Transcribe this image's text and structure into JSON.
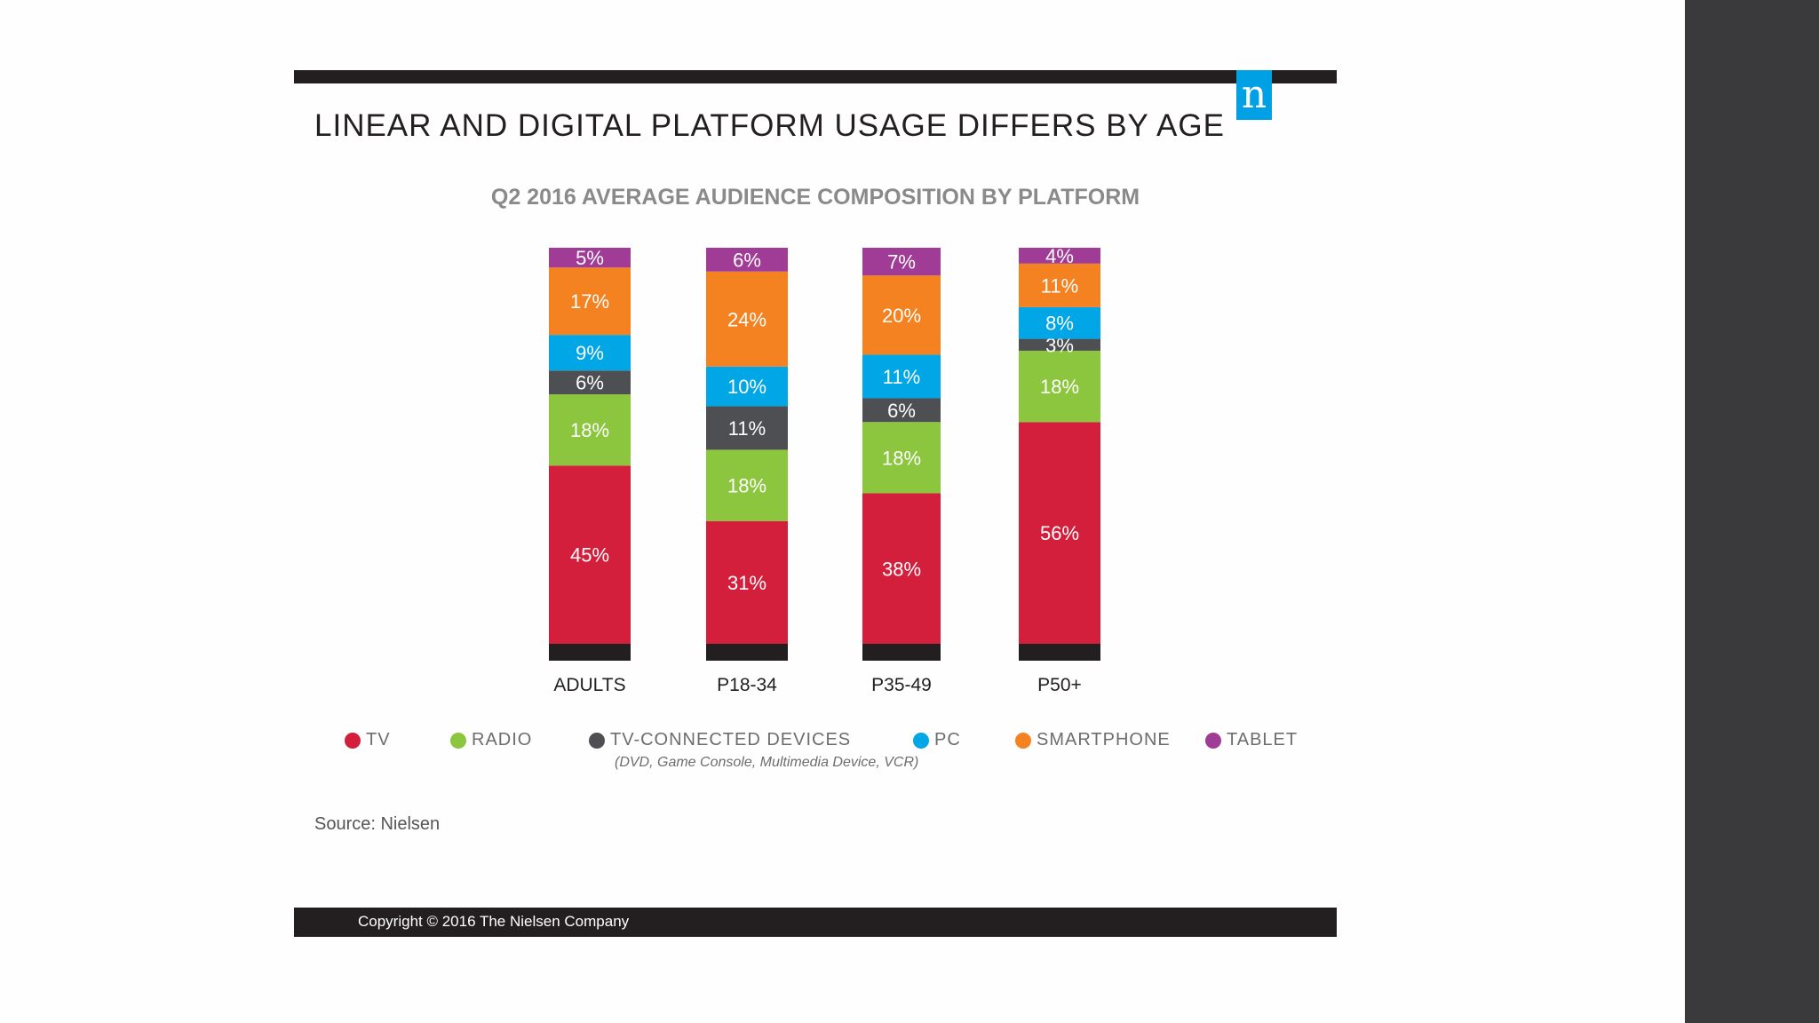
{
  "slide": {
    "title": "LINEAR AND DIGITAL PLATFORM USAGE DIFFERS BY AGE",
    "logo_letter": "n",
    "source": "Source: Nielsen",
    "copyright": "Copyright © 2016 The Nielsen Company"
  },
  "legend_note": "(DVD, Game Console, Multimedia Device, VCR)",
  "chart_data": {
    "type": "bar",
    "stacked": true,
    "title": "Q2 2016 AVERAGE AUDIENCE COMPOSITION BY PLATFORM",
    "xlabel": "",
    "ylabel": "",
    "ylim": [
      0,
      100
    ],
    "categories": [
      "ADULTS",
      "P18-34",
      "P35-49",
      "P50+"
    ],
    "series": [
      {
        "name": "TV",
        "color": "#d41f3c",
        "values": [
          45,
          31,
          38,
          56
        ],
        "labels": [
          "45%",
          "31%",
          "38%",
          "56%"
        ]
      },
      {
        "name": "RADIO",
        "color": "#8cc63f",
        "values": [
          18,
          18,
          18,
          18
        ],
        "labels": [
          "18%",
          "18%",
          "18%",
          "18%"
        ]
      },
      {
        "name": "TV-CONNECTED DEVICES",
        "color": "#4d4f53",
        "values": [
          6,
          11,
          6,
          3
        ],
        "labels": [
          "6%",
          "11%",
          "6%",
          "3%"
        ]
      },
      {
        "name": "PC",
        "color": "#00a6e6",
        "values": [
          9,
          10,
          11,
          8
        ],
        "labels": [
          "9%",
          "10%",
          "11%",
          "8%"
        ]
      },
      {
        "name": "SMARTPHONE",
        "color": "#f58220",
        "values": [
          17,
          24,
          20,
          11
        ],
        "labels": [
          "17%",
          "24%",
          "20%",
          "11%"
        ]
      },
      {
        "name": "TABLET",
        "color": "#a03c96",
        "values": [
          5,
          6,
          7,
          4
        ],
        "labels": [
          "5%",
          "6%",
          "7%",
          "4%"
        ]
      }
    ],
    "legend_position": "bottom"
  }
}
